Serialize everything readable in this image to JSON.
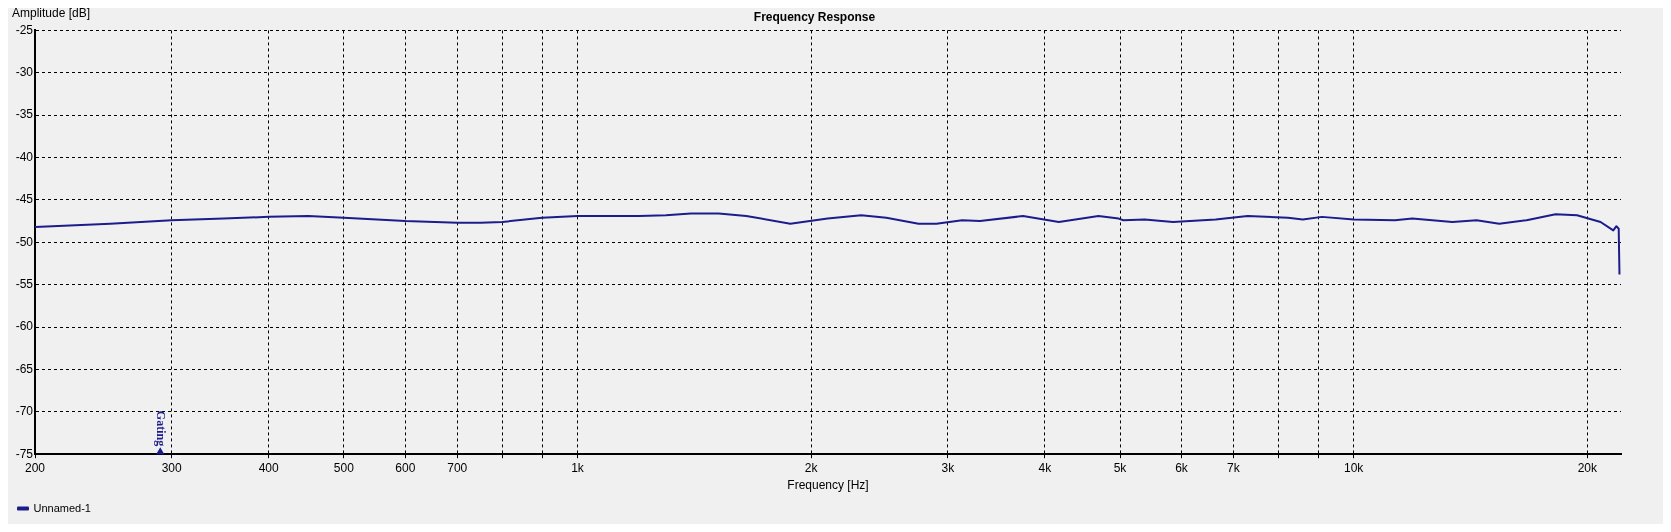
{
  "chart_data": {
    "type": "line",
    "title": "Frequency Response",
    "xlabel": "Frequency [Hz]",
    "ylabel": "Amplitude [dB]",
    "log": "x",
    "grid": true,
    "legend": "bottom left",
    "line_style": "solid",
    "marker": "none",
    "xlim": [
      200,
      22100
    ],
    "ylim": [
      -75,
      -25
    ],
    "xticks": [
      200,
      300,
      400,
      500,
      600,
      700,
      {
        "value": 800,
        "label": null
      },
      {
        "value": 900,
        "label": null
      },
      {
        "value": 1000,
        "label": "1k"
      },
      {
        "value": 2000,
        "label": "2k"
      },
      {
        "value": 3000,
        "label": "3k"
      },
      {
        "value": 4000,
        "label": "4k"
      },
      {
        "value": 5000,
        "label": "5k"
      },
      {
        "value": 6000,
        "label": "6k"
      },
      {
        "value": 7000,
        "label": "7k"
      },
      {
        "value": 8000,
        "label": null
      },
      {
        "value": 9000,
        "label": null
      },
      {
        "value": 10000,
        "label": "10k"
      },
      {
        "value": 20000,
        "label": "20k"
      }
    ],
    "yticks": [
      -75,
      -70,
      -65,
      -60,
      -55,
      -50,
      -45,
      -40,
      -35,
      -30,
      -25
    ],
    "annotations": [
      "Gating"
    ],
    "series": [
      {
        "type": "scatter",
        "marker": "triangle",
        "color": "#1c1c8c",
        "x": [
          290
        ],
        "values": [
          -75
        ]
      },
      {
        "name": "Unnamed-1",
        "color": "#1c1c8c",
        "x": [
          200,
          250,
          300,
          350,
          400,
          450,
          500,
          600,
          700,
          750,
          800,
          900,
          1000,
          1100,
          1200,
          1300,
          1400,
          1520,
          1650,
          1880,
          2100,
          2320,
          2500,
          2750,
          2900,
          3130,
          3300,
          3750,
          4170,
          4690,
          4980,
          5050,
          5380,
          5850,
          6640,
          7300,
          8230,
          8600,
          9100,
          10000,
          11300,
          11900,
          13400,
          14400,
          15400,
          16700,
          18200,
          19400,
          20800,
          21600,
          21800,
          21950,
          22000
        ],
        "values": [
          -48.2,
          -47.8,
          -47.4,
          -47.2,
          -47.0,
          -46.9,
          -47.1,
          -47.5,
          -47.7,
          -47.7,
          -47.6,
          -47.1,
          -46.9,
          -46.9,
          -46.9,
          -46.8,
          -46.6,
          -46.6,
          -46.9,
          -47.8,
          -47.2,
          -46.8,
          -47.1,
          -47.8,
          -47.8,
          -47.4,
          -47.5,
          -46.9,
          -47.6,
          -46.9,
          -47.2,
          -47.4,
          -47.3,
          -47.6,
          -47.3,
          -46.9,
          -47.1,
          -47.3,
          -47.0,
          -47.3,
          -47.4,
          -47.2,
          -47.6,
          -47.4,
          -47.8,
          -47.4,
          -46.7,
          -46.8,
          -47.6,
          -48.6,
          -48.1,
          -48.4,
          -53.8
        ]
      }
    ]
  }
}
